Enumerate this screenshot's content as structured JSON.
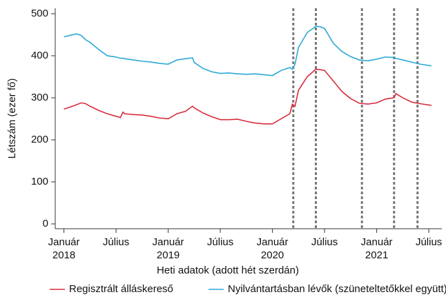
{
  "chart_data": {
    "type": "line",
    "x_label": "Heti adatok (adott hét szerdán)",
    "y_label": "Létszám (ezer fő)",
    "x": [
      0,
      1,
      1.5,
      2,
      2.5,
      3,
      4,
      5,
      6,
      6.5,
      6.8,
      7,
      8,
      9,
      10,
      11,
      12,
      13,
      14,
      14.8,
      15,
      16,
      17,
      18,
      19,
      20,
      21,
      22,
      23,
      24,
      25,
      26,
      26.3,
      26.6,
      27,
      28,
      29,
      29.5,
      30,
      31,
      32,
      33,
      34,
      35,
      36,
      37,
      38,
      38.2,
      39,
      40,
      41,
      42.3
    ],
    "series": [
      {
        "name": "Regisztrált álláskereső",
        "color": "#d92b3a",
        "values": [
          273,
          280,
          284,
          288,
          286,
          280,
          270,
          262,
          256,
          253,
          266,
          262,
          260,
          259,
          256,
          252,
          250,
          262,
          268,
          280,
          276,
          264,
          255,
          248,
          248,
          249,
          244,
          240,
          238,
          238,
          250,
          262,
          285,
          280,
          318,
          350,
          368,
          367,
          365,
          340,
          315,
          298,
          287,
          285,
          288,
          297,
          300,
          310,
          300,
          290,
          286,
          282
        ]
      },
      {
        "name": "Nyilvántartásban lévők (szüneteltetőkkel együtt)",
        "color": "#2aa8d6",
        "values": [
          445,
          450,
          452,
          448,
          438,
          432,
          415,
          400,
          397,
          394,
          394,
          393,
          390,
          387,
          385,
          382,
          380,
          390,
          393,
          395,
          384,
          370,
          362,
          358,
          359,
          357,
          356,
          357,
          355,
          353,
          365,
          372,
          368,
          380,
          420,
          455,
          470,
          469,
          465,
          430,
          410,
          398,
          390,
          388,
          392,
          397,
          396,
          394,
          390,
          385,
          380,
          376
        ]
      }
    ],
    "vlines": [
      26.4,
      29,
      34.3,
      38,
      40.7
    ],
    "xlim": [
      -1,
      43.5
    ],
    "xticks": [
      {
        "value": 0,
        "label": "Január 2018"
      },
      {
        "value": 6,
        "label": "Július"
      },
      {
        "value": 12,
        "label": "Január 2019"
      },
      {
        "value": 18,
        "label": "Július"
      },
      {
        "value": 24,
        "label": "Január 2020"
      },
      {
        "value": 30,
        "label": "Július"
      },
      {
        "value": 36,
        "label": "Január 2021"
      },
      {
        "value": 42,
        "label": "Július"
      }
    ],
    "ylim": [
      -11.5,
      513
    ],
    "yticks": [
      0,
      100,
      200,
      300,
      400,
      500
    ],
    "grid": false,
    "legend": "bottom"
  }
}
